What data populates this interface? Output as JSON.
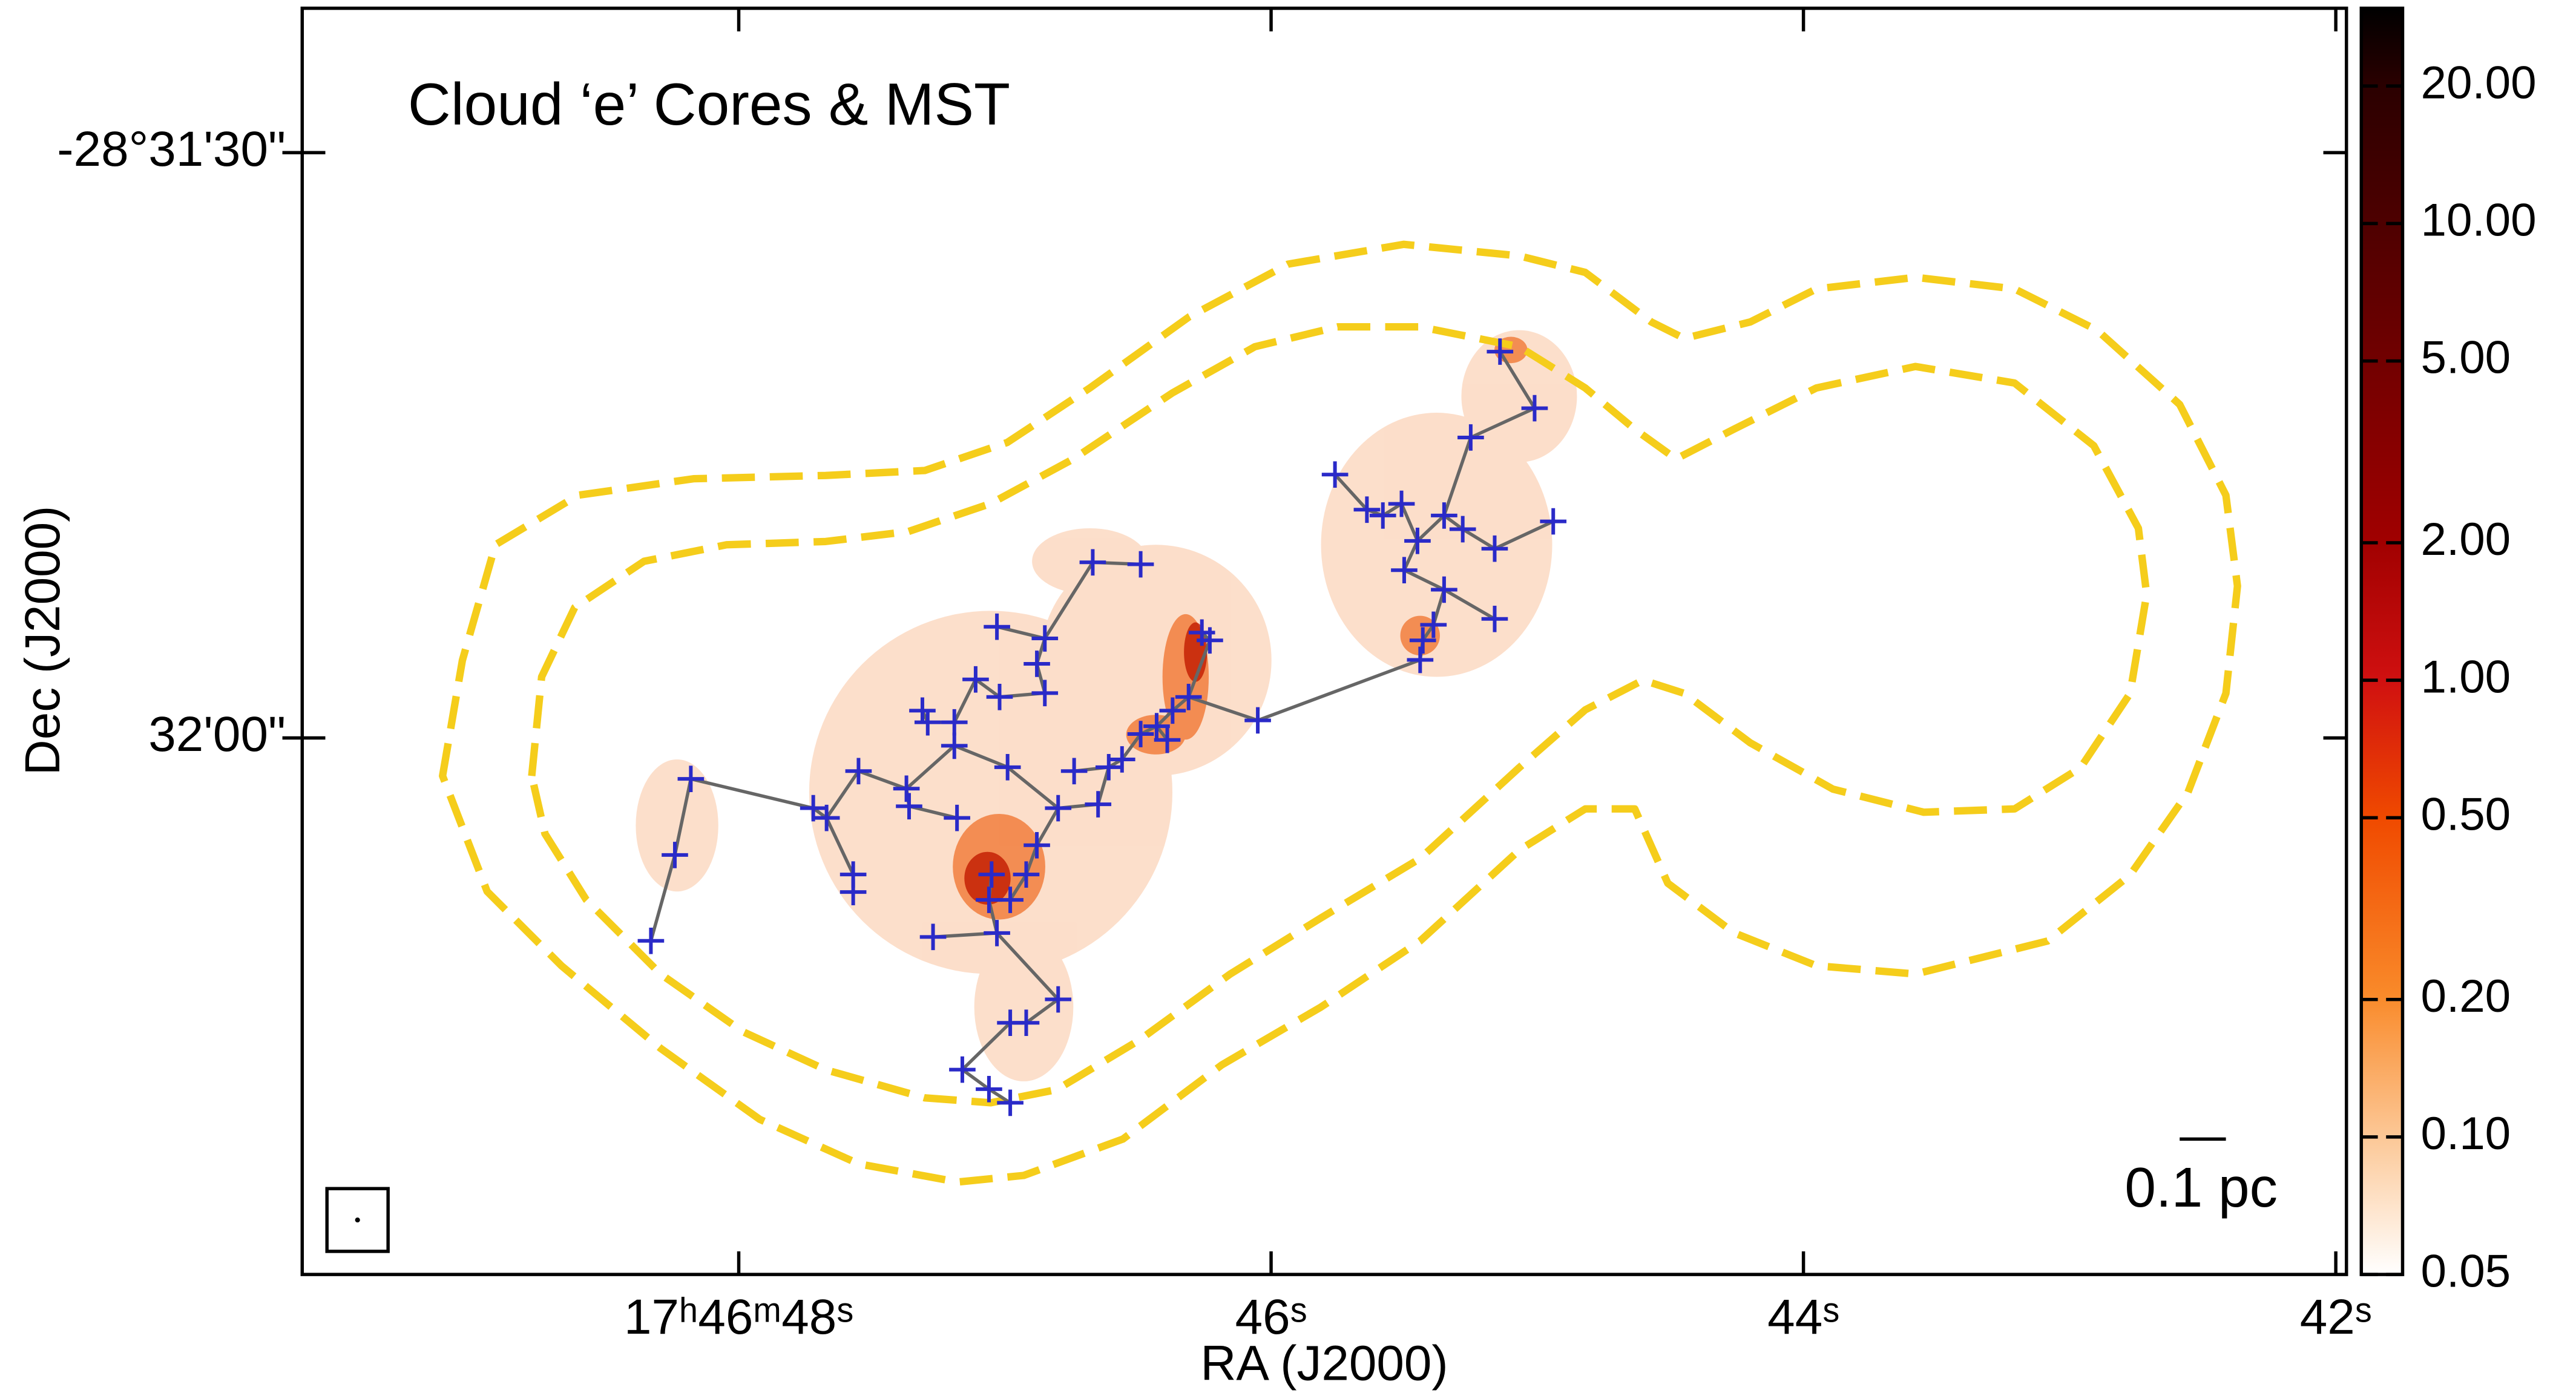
{
  "chart_data": {
    "type": "scatter",
    "title": "Cloud ‘e’ Cores & MST",
    "x_label": "RA (J2000)",
    "y_label": "Dec (J2000)",
    "scale_bar": "0.1 pc",
    "color": "#2a2ac8",
    "mst_color": "#666666",
    "mst": true,
    "x": [
      48.33,
      48.24,
      48.18,
      47.72,
      47.67,
      47.55,
      47.57,
      47.57,
      47.37,
      47.36,
      47.18,
      47.27,
      47.31,
      47.29,
      47.19,
      47.19,
      47.11,
      47.03,
      47.02,
      46.85,
      46.88,
      46.85,
      46.99,
      47.05,
      47.03,
      47.06,
      46.98,
      46.92,
      46.88,
      46.8,
      46.74,
      46.65,
      46.61,
      46.56,
      46.49,
      46.43,
      46.39,
      46.37,
      46.31,
      46.26,
      46.23,
      46.05,
      46.67,
      46.49,
      46.98,
      46.92,
      46.8,
      47.16,
      47.06,
      46.98,
      45.76,
      45.64,
      45.51,
      45.58,
      45.45,
      45.5,
      45.35,
      45.39,
      45.43,
      45.44,
      45.25,
      45.01,
      45.14,
      45.16,
      45.35,
      45.28,
      44.94,
      45.16
    ],
    "y": [
      -102730.4,
      -102726.0,
      -102722.1,
      -102723.6,
      -102724.1,
      -102721.7,
      -102727.0,
      -102727.9,
      -102722.6,
      -102723.5,
      -102724.1,
      -102730.2,
      -102718.6,
      -102719.2,
      -102719.2,
      -102720.4,
      -102717.0,
      -102714.3,
      -102717.9,
      -102714.9,
      -102716.2,
      -102717.7,
      -102721.5,
      -102727.0,
      -102730.0,
      -102728.3,
      -102728.3,
      -102727.0,
      -102725.5,
      -102723.6,
      -102721.7,
      -102723.4,
      -102721.5,
      -102721.1,
      -102719.8,
      -102719.4,
      -102720.1,
      -102718.6,
      -102717.9,
      -102714.6,
      -102715.0,
      -102719.1,
      -102711.0,
      -102711.1,
      -102734.6,
      -102734.6,
      -102733.4,
      -102737.0,
      -102738.0,
      -102738.7,
      -102706.5,
      -102708.3,
      -102708.0,
      -102708.6,
      -102709.9,
      -102711.4,
      -102712.4,
      -102714.2,
      -102715.0,
      -102716.0,
      -102704.6,
      -102703.1,
      -102700.2,
      -102710.3,
      -102708.6,
      -102709.3,
      -102708.9,
      -102713.9
    ],
    "xlim": [
      49.64,
      41.96
    ],
    "ylim": [
      -102747.5,
      -102682.6
    ],
    "xticks": [
      {
        "value": 48,
        "label": "17ʰ46ᵐ48ˢ"
      },
      {
        "value": 46,
        "label": "46ˢ"
      },
      {
        "value": 44,
        "label": "44ˢ"
      },
      {
        "value": 42,
        "label": "42ˢ"
      }
    ],
    "yticks": [
      {
        "value": -102690,
        "label": "-28°31'30\""
      },
      {
        "value": -102720,
        "label": "32'00\""
      }
    ],
    "colorbar": {
      "scale": "log",
      "lim": [
        0.05,
        29.6
      ],
      "ticks": [
        {
          "value": 0.05,
          "label": "0.05"
        },
        {
          "value": 0.1,
          "label": "0.10"
        },
        {
          "value": 0.2,
          "label": "0.20"
        },
        {
          "value": 0.5,
          "label": "0.50"
        },
        {
          "value": 1,
          "label": "1.00"
        },
        {
          "value": 2,
          "label": "2.00"
        },
        {
          "value": 5,
          "label": "5.00"
        },
        {
          "value": 10,
          "label": "10.00"
        },
        {
          "value": 20,
          "label": "20.00"
        }
      ]
    }
  }
}
